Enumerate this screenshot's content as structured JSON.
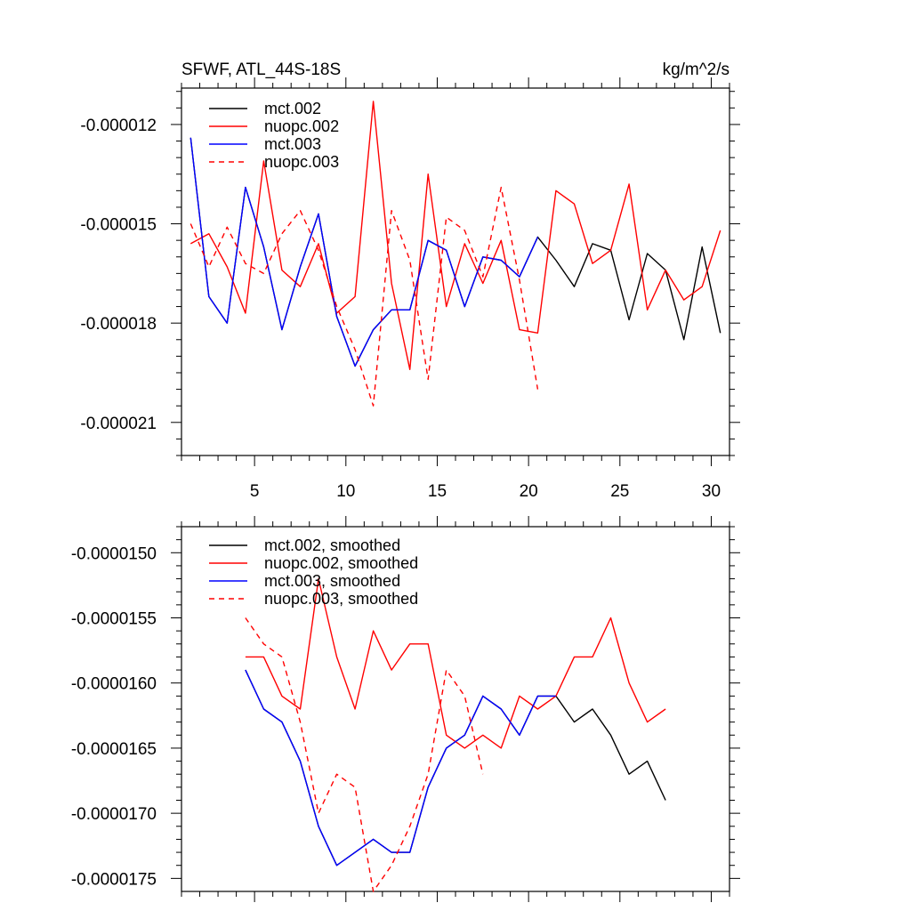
{
  "chart_data": [
    {
      "type": "line",
      "title": "SFWF, ATL_44S-18S",
      "units_label": "kg/m^2/s",
      "xlabel": "",
      "ylabel": "",
      "xlim": [
        1,
        31
      ],
      "ylim": [
        -2.2e-05,
        -1.09e-05
      ],
      "xticks": [
        5,
        10,
        15,
        20,
        25,
        30
      ],
      "xtick_labels": [
        "5",
        "10",
        "15",
        "20",
        "25",
        "30"
      ],
      "yticks": [
        -1.2e-05,
        -1.5e-05,
        -1.8e-05,
        -2.1e-05
      ],
      "ytick_labels": [
        "-0.000012",
        "-0.000015",
        "-0.000018",
        "-0.000021"
      ],
      "legend_position": "top-left",
      "series": [
        {
          "name": "mct.002",
          "color": "#000000",
          "dash": "solid",
          "x": [
            1.5,
            2.5,
            3.5,
            4.5,
            5.5,
            6.5,
            7.5,
            8.5,
            9.5,
            10.5,
            11.5,
            12.5,
            13.5,
            14.5,
            15.5,
            16.5,
            17.5,
            18.5,
            19.5,
            20.5,
            21.5,
            22.5,
            23.5,
            24.5,
            25.5,
            26.5,
            27.5,
            28.5,
            29.5,
            30.5
          ],
          "values": [
            -1.24e-05,
            -1.72e-05,
            -1.8e-05,
            -1.39e-05,
            -1.57e-05,
            -1.82e-05,
            -1.63e-05,
            -1.47e-05,
            -1.78e-05,
            -1.93e-05,
            -1.82e-05,
            -1.76e-05,
            -1.76e-05,
            -1.55e-05,
            -1.58e-05,
            -1.75e-05,
            -1.6e-05,
            -1.61e-05,
            -1.66e-05,
            -1.54e-05,
            -1.61e-05,
            -1.69e-05,
            -1.56e-05,
            -1.58e-05,
            -1.79e-05,
            -1.59e-05,
            -1.64e-05,
            -1.85e-05,
            -1.57e-05,
            -1.83e-05
          ]
        },
        {
          "name": "nuopc.002",
          "color": "#ff0000",
          "dash": "solid",
          "x": [
            1.5,
            2.5,
            3.5,
            4.5,
            5.5,
            6.5,
            7.5,
            8.5,
            9.5,
            10.5,
            11.5,
            12.5,
            13.5,
            14.5,
            15.5,
            16.5,
            17.5,
            18.5,
            19.5,
            20.5,
            21.5,
            22.5,
            23.5,
            24.5,
            25.5,
            26.5,
            27.5,
            28.5,
            29.5,
            30.5
          ],
          "values": [
            -1.56e-05,
            -1.53e-05,
            -1.63e-05,
            -1.77e-05,
            -1.31e-05,
            -1.64e-05,
            -1.69e-05,
            -1.56e-05,
            -1.77e-05,
            -1.72e-05,
            -1.13e-05,
            -1.68e-05,
            -1.94e-05,
            -1.35e-05,
            -1.75e-05,
            -1.56e-05,
            -1.68e-05,
            -1.55e-05,
            -1.82e-05,
            -1.83e-05,
            -1.4e-05,
            -1.44e-05,
            -1.62e-05,
            -1.58e-05,
            -1.38e-05,
            -1.76e-05,
            -1.64e-05,
            -1.73e-05,
            -1.69e-05,
            -1.52e-05
          ]
        },
        {
          "name": "mct.003",
          "color": "#0000ff",
          "dash": "solid",
          "x": [
            1.5,
            2.5,
            3.5,
            4.5,
            5.5,
            6.5,
            7.5,
            8.5,
            9.5,
            10.5,
            11.5,
            12.5,
            13.5,
            14.5,
            15.5,
            16.5,
            17.5,
            18.5,
            19.5,
            20.5
          ],
          "values": [
            -1.24e-05,
            -1.72e-05,
            -1.8e-05,
            -1.39e-05,
            -1.57e-05,
            -1.82e-05,
            -1.63e-05,
            -1.47e-05,
            -1.78e-05,
            -1.93e-05,
            -1.82e-05,
            -1.76e-05,
            -1.76e-05,
            -1.55e-05,
            -1.58e-05,
            -1.75e-05,
            -1.6e-05,
            -1.61e-05,
            -1.66e-05,
            -1.54e-05
          ]
        },
        {
          "name": "nuopc.003",
          "color": "#ff0000",
          "dash": "dashed",
          "x": [
            1.5,
            2.5,
            3.5,
            4.5,
            5.5,
            6.5,
            7.5,
            8.5,
            9.5,
            10.5,
            11.5,
            12.5,
            13.5,
            14.5,
            15.5,
            16.5,
            17.5,
            18.5,
            19.5,
            20.5
          ],
          "values": [
            -1.5e-05,
            -1.63e-05,
            -1.51e-05,
            -1.62e-05,
            -1.65e-05,
            -1.53e-05,
            -1.46e-05,
            -1.58e-05,
            -1.75e-05,
            -1.88e-05,
            -2.05e-05,
            -1.46e-05,
            -1.61e-05,
            -1.97e-05,
            -1.48e-05,
            -1.52e-05,
            -1.66e-05,
            -1.39e-05,
            -1.67e-05,
            -2e-05
          ]
        }
      ]
    },
    {
      "type": "line",
      "title": "",
      "xlabel": "",
      "ylabel": "",
      "xlim": [
        1,
        31
      ],
      "ylim": [
        -1.76e-05,
        -1.48e-05
      ],
      "xticks": [
        5,
        10,
        15,
        20,
        25,
        30
      ],
      "yticks": [
        -1.5e-05,
        -1.55e-05,
        -1.6e-05,
        -1.65e-05,
        -1.7e-05,
        -1.75e-05
      ],
      "ytick_labels": [
        "-0.0000150",
        "-0.0000155",
        "-0.0000160",
        "-0.0000165",
        "-0.0000170",
        "-0.0000175"
      ],
      "legend_position": "top-left",
      "series": [
        {
          "name": "mct.002, smoothed",
          "color": "#000000",
          "dash": "solid",
          "x": [
            4.5,
            5.5,
            6.5,
            7.5,
            8.5,
            9.5,
            10.5,
            11.5,
            12.5,
            13.5,
            14.5,
            15.5,
            16.5,
            17.5,
            18.5,
            19.5,
            20.5,
            21.5,
            22.5,
            23.5,
            24.5,
            25.5,
            26.5,
            27.5
          ],
          "values": [
            -1.59e-05,
            -1.62e-05,
            -1.63e-05,
            -1.66e-05,
            -1.71e-05,
            -1.74e-05,
            -1.73e-05,
            -1.72e-05,
            -1.73e-05,
            -1.73e-05,
            -1.68e-05,
            -1.65e-05,
            -1.64e-05,
            -1.61e-05,
            -1.62e-05,
            -1.64e-05,
            -1.61e-05,
            -1.61e-05,
            -1.63e-05,
            -1.62e-05,
            -1.64e-05,
            -1.67e-05,
            -1.66e-05,
            -1.69e-05
          ]
        },
        {
          "name": "nuopc.002, smoothed",
          "color": "#ff0000",
          "dash": "solid",
          "x": [
            4.5,
            5.5,
            6.5,
            7.5,
            8.5,
            9.5,
            10.5,
            11.5,
            12.5,
            13.5,
            14.5,
            15.5,
            16.5,
            17.5,
            18.5,
            19.5,
            20.5,
            21.5,
            22.5,
            23.5,
            24.5,
            25.5,
            26.5,
            27.5
          ],
          "values": [
            -1.58e-05,
            -1.58e-05,
            -1.61e-05,
            -1.62e-05,
            -1.52e-05,
            -1.58e-05,
            -1.62e-05,
            -1.56e-05,
            -1.59e-05,
            -1.57e-05,
            -1.57e-05,
            -1.64e-05,
            -1.65e-05,
            -1.64e-05,
            -1.65e-05,
            -1.61e-05,
            -1.62e-05,
            -1.61e-05,
            -1.58e-05,
            -1.58e-05,
            -1.55e-05,
            -1.6e-05,
            -1.63e-05,
            -1.62e-05
          ]
        },
        {
          "name": "mct.003, smoothed",
          "color": "#0000ff",
          "dash": "solid",
          "x": [
            4.5,
            5.5,
            6.5,
            7.5,
            8.5,
            9.5,
            10.5,
            11.5,
            12.5,
            13.5,
            14.5,
            15.5,
            16.5,
            17.5,
            18.5,
            19.5,
            20.5,
            21.5
          ],
          "values": [
            -1.59e-05,
            -1.62e-05,
            -1.63e-05,
            -1.66e-05,
            -1.71e-05,
            -1.74e-05,
            -1.73e-05,
            -1.72e-05,
            -1.73e-05,
            -1.73e-05,
            -1.68e-05,
            -1.65e-05,
            -1.64e-05,
            -1.61e-05,
            -1.62e-05,
            -1.64e-05,
            -1.61e-05,
            -1.61e-05
          ]
        },
        {
          "name": "nuopc.003, smoothed",
          "color": "#ff0000",
          "dash": "dashed",
          "x": [
            4.5,
            5.5,
            6.5,
            7.5,
            8.5,
            9.5,
            10.5,
            11.5,
            12.5,
            13.5,
            14.5,
            15.5,
            16.5,
            17.5
          ],
          "values": [
            -1.55e-05,
            -1.57e-05,
            -1.58e-05,
            -1.63e-05,
            -1.7e-05,
            -1.67e-05,
            -1.68e-05,
            -1.76e-05,
            -1.74e-05,
            -1.71e-05,
            -1.67e-05,
            -1.59e-05,
            -1.61e-05,
            -1.67e-05
          ]
        }
      ]
    }
  ]
}
